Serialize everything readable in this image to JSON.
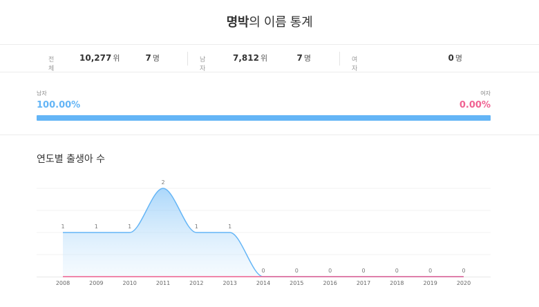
{
  "header": {
    "name": "명박",
    "suffix": "의 이름 통계"
  },
  "stats": {
    "total": {
      "label": "전체",
      "rank": "10,277",
      "rank_unit": "위",
      "count": "7",
      "count_unit": "명"
    },
    "male": {
      "label": "남자",
      "rank": "7,812",
      "rank_unit": "위",
      "count": "7",
      "count_unit": "명"
    },
    "female": {
      "label": "여자",
      "count": "0",
      "count_unit": "명"
    }
  },
  "gender_ratio": {
    "male_label": "남자",
    "male_percent": "100.00%",
    "male_fraction": 1.0,
    "female_label": "여자",
    "female_percent": "0.00%",
    "male_color": "#64b5f6",
    "female_color": "#f06292"
  },
  "births_section": {
    "title": "연도별 출생아 수"
  },
  "chart_data": {
    "type": "area",
    "categories": [
      "2008",
      "2009",
      "2010",
      "2011",
      "2012",
      "2013",
      "2014",
      "2015",
      "2016",
      "2017",
      "2018",
      "2019",
      "2020"
    ],
    "series": [
      {
        "values": [
          1,
          1,
          1,
          2,
          1,
          1,
          0,
          0,
          0,
          0,
          0,
          0,
          0
        ],
        "color": "#64b5f6"
      },
      {
        "values": [
          0,
          0,
          0,
          0,
          0,
          0,
          0,
          0,
          0,
          0,
          0,
          0,
          0
        ],
        "color": "#f06292"
      }
    ],
    "data_labels": [
      "1",
      "1",
      "1",
      "2",
      "1",
      "1",
      "0",
      "0",
      "0",
      "0",
      "0",
      "0",
      "0"
    ],
    "ylim": [
      0,
      2
    ],
    "grid": true
  }
}
